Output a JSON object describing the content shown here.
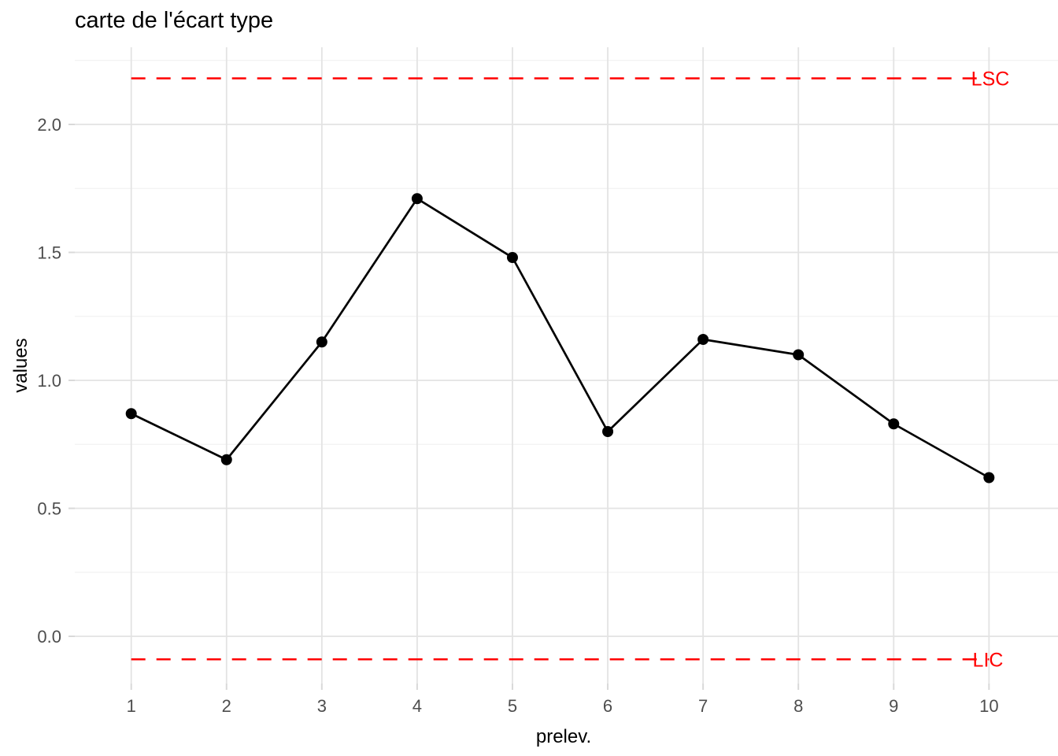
{
  "title": "carte de l'écart type",
  "colors": {
    "series": "#000000",
    "control_limit": "#FF0000",
    "grid_major": "#E3E3E3",
    "grid_minor": "#EFEFEF",
    "axis_tick": "#D9D9D9",
    "tick_label": "#4D4D4D",
    "axis_title": "#000000",
    "title": "#000000",
    "background": "#FFFFFF"
  },
  "chart_data": {
    "type": "line",
    "title": "carte de l'écart type",
    "xlabel": "prelev.",
    "ylabel": "values",
    "x": [
      1,
      2,
      3,
      4,
      5,
      6,
      7,
      8,
      9,
      10
    ],
    "x_tick_labels": [
      "1",
      "2",
      "3",
      "4",
      "5",
      "6",
      "7",
      "8",
      "9",
      "10"
    ],
    "y_tick_values": [
      0.0,
      0.5,
      1.0,
      1.5,
      2.0
    ],
    "y_tick_labels": [
      "0.0",
      "0.5",
      "1.0",
      "1.5",
      "2.0"
    ],
    "y_minor_gridlines": [
      0.25,
      0.75,
      1.25,
      1.75,
      2.25
    ],
    "series": [
      {
        "name": "values",
        "values": [
          0.87,
          0.69,
          1.15,
          1.71,
          1.48,
          0.8,
          1.16,
          1.1,
          0.83,
          0.62
        ],
        "color": "#000000",
        "marker": "point"
      }
    ],
    "control_limits": {
      "upper": {
        "label": "LSC",
        "value": 2.18
      },
      "lower": {
        "label": "LIC",
        "value": -0.09
      }
    },
    "limit_line_color": "#FF0000",
    "limit_line_style": "dashed",
    "xlim": [
      0.41,
      10.72
    ],
    "ylim": [
      -0.18,
      2.3
    ],
    "grid": "horizontal major+minor, vertical major only",
    "legend": "none"
  }
}
